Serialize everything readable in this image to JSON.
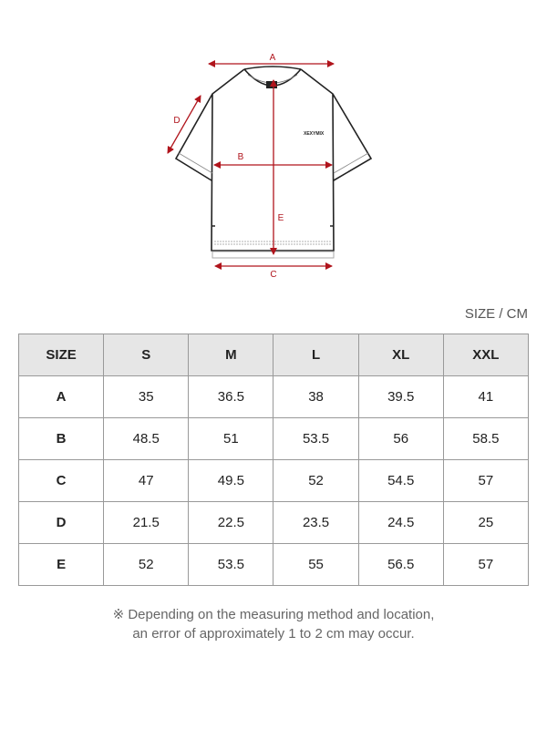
{
  "diagram": {
    "labels": {
      "a": "A",
      "b": "B",
      "c": "C",
      "d": "D",
      "e": "E"
    },
    "brand_print": "XEXYMIX",
    "accent_color": "#b0141c"
  },
  "unit_label": "SIZE / CM",
  "table": {
    "headers": [
      "SIZE",
      "S",
      "M",
      "L",
      "XL",
      "XXL"
    ],
    "rows": [
      {
        "label": "A",
        "values": [
          "35",
          "36.5",
          "38",
          "39.5",
          "41"
        ]
      },
      {
        "label": "B",
        "values": [
          "48.5",
          "51",
          "53.5",
          "56",
          "58.5"
        ]
      },
      {
        "label": "C",
        "values": [
          "47",
          "49.5",
          "52",
          "54.5",
          "57"
        ]
      },
      {
        "label": "D",
        "values": [
          "21.5",
          "22.5",
          "23.5",
          "24.5",
          "25"
        ]
      },
      {
        "label": "E",
        "values": [
          "52",
          "53.5",
          "55",
          "56.5",
          "57"
        ]
      }
    ]
  },
  "note": {
    "line1": "※ Depending on the measuring method and location,",
    "line2": "an error of approximately 1 to 2 cm may occur."
  }
}
